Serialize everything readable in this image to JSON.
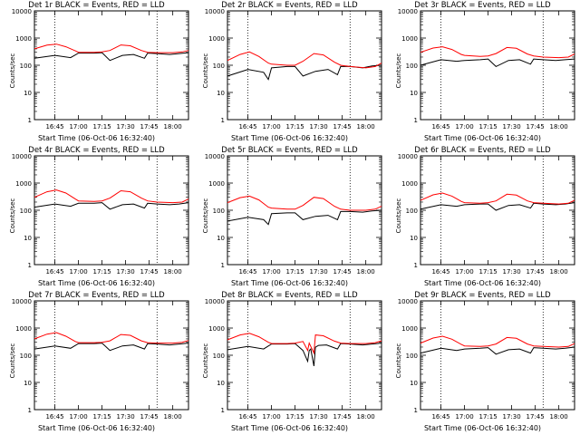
{
  "figure": {
    "xlabel": "Start Time (06-Oct-06 16:32:40)",
    "ylabel": "Counts/sec",
    "x_ticks": [
      "16:45",
      "17:00",
      "17:15",
      "17:30",
      "17:45",
      "18:00"
    ],
    "y_ticks": [
      "1",
      "10",
      "100",
      "1000",
      "10000"
    ],
    "colors": {
      "events": "#000000",
      "lld": "#ff0000",
      "axis": "#000000",
      "background": "#ffffff"
    }
  },
  "chart_data": [
    {
      "type": "line",
      "title": "Det 1r BLACK = Events, RED = LLD",
      "xlabel": "Start Time (06-Oct-06 16:32:40)",
      "ylabel": "Counts/sec",
      "xlim": [
        "16:32",
        "18:10"
      ],
      "ylim": [
        1,
        10000
      ],
      "yscale": "log",
      "vlines": [
        "16:45",
        "17:50"
      ],
      "series": [
        {
          "name": "Events",
          "color": "#000000",
          "x": [
            "16:32",
            "16:45",
            "16:55",
            "17:00",
            "17:10",
            "17:15",
            "17:20",
            "17:28",
            "17:35",
            "17:42",
            "17:44",
            "17:50",
            "17:58",
            "18:04",
            "18:10"
          ],
          "y": [
            180,
            230,
            190,
            280,
            280,
            290,
            150,
            230,
            250,
            180,
            280,
            270,
            250,
            270,
            290
          ]
        },
        {
          "name": "LLD",
          "color": "#ff0000",
          "x": [
            "16:32",
            "16:40",
            "16:46",
            "16:52",
            "16:58",
            "17:00",
            "17:10",
            "17:15",
            "17:20",
            "17:27",
            "17:33",
            "17:40",
            "17:44",
            "17:50",
            "18:00",
            "18:06",
            "18:10"
          ],
          "y": [
            400,
            550,
            600,
            480,
            340,
            300,
            300,
            310,
            350,
            560,
            520,
            350,
            300,
            290,
            290,
            310,
            350
          ]
        }
      ]
    },
    {
      "type": "line",
      "title": "Det 2r BLACK = Events, RED = LLD",
      "xlabel": "Start Time (06-Oct-06 16:32:40)",
      "ylabel": "Counts/sec",
      "xlim": [
        "16:32",
        "18:10"
      ],
      "ylim": [
        1,
        10000
      ],
      "yscale": "log",
      "vlines": [
        "16:45",
        "17:50"
      ],
      "series": [
        {
          "name": "Events",
          "color": "#000000",
          "x": [
            "16:32",
            "16:45",
            "16:55",
            "16:58",
            "17:00",
            "17:10",
            "17:15",
            "17:20",
            "17:28",
            "17:36",
            "17:42",
            "17:44",
            "17:50",
            "17:58",
            "18:04",
            "18:10"
          ],
          "y": [
            40,
            70,
            55,
            30,
            80,
            90,
            90,
            40,
            60,
            70,
            45,
            90,
            90,
            80,
            95,
            100
          ]
        },
        {
          "name": "LLD",
          "color": "#ff0000",
          "x": [
            "16:32",
            "16:40",
            "16:46",
            "16:52",
            "16:58",
            "17:00",
            "17:10",
            "17:15",
            "17:20",
            "17:27",
            "17:33",
            "17:40",
            "17:44",
            "17:50",
            "18:00",
            "18:06",
            "18:10"
          ],
          "y": [
            150,
            250,
            310,
            210,
            120,
            110,
            100,
            100,
            140,
            270,
            240,
            130,
            100,
            90,
            80,
            90,
            120
          ]
        }
      ]
    },
    {
      "type": "line",
      "title": "Det 3r BLACK = Events, RED = LLD",
      "xlabel": "Start Time (06-Oct-06 16:32:40)",
      "ylabel": "Counts/sec",
      "xlim": [
        "16:32",
        "18:10"
      ],
      "ylim": [
        1,
        10000
      ],
      "yscale": "log",
      "vlines": [
        "16:45",
        "17:50"
      ],
      "series": [
        {
          "name": "Events",
          "color": "#000000",
          "x": [
            "16:32",
            "16:45",
            "16:55",
            "17:00",
            "17:10",
            "17:15",
            "17:20",
            "17:28",
            "17:35",
            "17:42",
            "17:44",
            "17:50",
            "17:58",
            "18:04",
            "18:10"
          ],
          "y": [
            100,
            160,
            140,
            150,
            160,
            170,
            90,
            150,
            160,
            110,
            170,
            160,
            150,
            160,
            170
          ]
        },
        {
          "name": "LLD",
          "color": "#ff0000",
          "x": [
            "16:32",
            "16:40",
            "16:46",
            "16:52",
            "16:58",
            "17:00",
            "17:10",
            "17:15",
            "17:20",
            "17:27",
            "17:33",
            "17:40",
            "17:44",
            "17:50",
            "18:00",
            "18:06",
            "18:10"
          ],
          "y": [
            300,
            430,
            480,
            380,
            250,
            230,
            210,
            220,
            270,
            450,
            420,
            260,
            220,
            200,
            190,
            200,
            260
          ]
        }
      ]
    },
    {
      "type": "line",
      "title": "Det 4r BLACK = Events, RED = LLD",
      "xlabel": "Start Time (06-Oct-06 16:32:40)",
      "ylabel": "Counts/sec",
      "xlim": [
        "16:32",
        "18:10"
      ],
      "ylim": [
        1,
        10000
      ],
      "yscale": "log",
      "vlines": [
        "16:45",
        "17:50"
      ],
      "series": [
        {
          "name": "Events",
          "color": "#000000",
          "x": [
            "16:32",
            "16:45",
            "16:55",
            "17:00",
            "17:10",
            "17:15",
            "17:20",
            "17:28",
            "17:35",
            "17:42",
            "17:44",
            "17:50",
            "17:58",
            "18:04",
            "18:10"
          ],
          "y": [
            130,
            170,
            140,
            180,
            180,
            190,
            110,
            160,
            170,
            120,
            180,
            170,
            160,
            170,
            190
          ]
        },
        {
          "name": "LLD",
          "color": "#ff0000",
          "x": [
            "16:32",
            "16:40",
            "16:46",
            "16:52",
            "16:58",
            "17:00",
            "17:10",
            "17:15",
            "17:20",
            "17:27",
            "17:33",
            "17:40",
            "17:44",
            "17:50",
            "18:00",
            "18:06",
            "18:10"
          ],
          "y": [
            300,
            480,
            560,
            430,
            260,
            220,
            210,
            220,
            280,
            520,
            480,
            280,
            220,
            200,
            190,
            200,
            260
          ]
        }
      ]
    },
    {
      "type": "line",
      "title": "Det 5r BLACK = Events, RED = LLD",
      "xlabel": "Start Time (06-Oct-06 16:32:40)",
      "ylabel": "Counts/sec",
      "xlim": [
        "16:32",
        "18:10"
      ],
      "ylim": [
        1,
        10000
      ],
      "yscale": "log",
      "vlines": [
        "16:45",
        "17:50"
      ],
      "series": [
        {
          "name": "Events",
          "color": "#000000",
          "x": [
            "16:32",
            "16:45",
            "16:55",
            "16:58",
            "17:00",
            "17:10",
            "17:15",
            "17:20",
            "17:28",
            "17:36",
            "17:42",
            "17:44",
            "17:50",
            "17:58",
            "18:04",
            "18:10"
          ],
          "y": [
            40,
            55,
            45,
            30,
            75,
            80,
            80,
            45,
            60,
            65,
            45,
            90,
            90,
            85,
            95,
            100
          ]
        },
        {
          "name": "LLD",
          "color": "#ff0000",
          "x": [
            "16:32",
            "16:40",
            "16:46",
            "16:52",
            "16:58",
            "17:00",
            "17:10",
            "17:15",
            "17:20",
            "17:27",
            "17:33",
            "17:40",
            "17:44",
            "17:50",
            "18:00",
            "18:06",
            "18:10"
          ],
          "y": [
            190,
            290,
            330,
            240,
            130,
            120,
            110,
            110,
            150,
            300,
            270,
            140,
            110,
            100,
            100,
            110,
            140
          ]
        }
      ]
    },
    {
      "type": "line",
      "title": "Det 6r BLACK = Events, RED = LLD",
      "xlabel": "Start Time (06-Oct-06 16:32:40)",
      "ylabel": "Counts/sec",
      "xlim": [
        "16:32",
        "18:10"
      ],
      "ylim": [
        1,
        10000
      ],
      "yscale": "log",
      "vlines": [
        "16:45",
        "17:50"
      ],
      "series": [
        {
          "name": "Events",
          "color": "#000000",
          "x": [
            "16:32",
            "16:45",
            "16:55",
            "17:00",
            "17:10",
            "17:15",
            "17:20",
            "17:28",
            "17:35",
            "17:42",
            "17:44",
            "17:50",
            "17:58",
            "18:04",
            "18:10"
          ],
          "y": [
            110,
            160,
            140,
            160,
            170,
            170,
            100,
            150,
            160,
            120,
            180,
            170,
            160,
            170,
            190
          ]
        },
        {
          "name": "LLD",
          "color": "#ff0000",
          "x": [
            "16:32",
            "16:40",
            "16:46",
            "16:52",
            "16:58",
            "17:00",
            "17:10",
            "17:15",
            "17:20",
            "17:27",
            "17:33",
            "17:40",
            "17:44",
            "17:50",
            "18:00",
            "18:06",
            "18:10"
          ],
          "y": [
            230,
            370,
            430,
            330,
            210,
            190,
            180,
            190,
            220,
            390,
            360,
            220,
            190,
            180,
            170,
            180,
            230
          ]
        }
      ]
    },
    {
      "type": "line",
      "title": "Det 7r BLACK = Events, RED = LLD",
      "xlabel": "Start Time (06-Oct-06 16:32:40)",
      "ylabel": "Counts/sec",
      "xlim": [
        "16:32",
        "18:10"
      ],
      "ylim": [
        1,
        10000
      ],
      "yscale": "log",
      "vlines": [
        "16:45",
        "17:50"
      ],
      "series": [
        {
          "name": "Events",
          "color": "#000000",
          "x": [
            "16:32",
            "16:45",
            "16:55",
            "17:00",
            "17:10",
            "17:15",
            "17:20",
            "17:28",
            "17:35",
            "17:42",
            "17:44",
            "17:50",
            "17:58",
            "18:04",
            "18:10"
          ],
          "y": [
            170,
            220,
            180,
            270,
            270,
            280,
            150,
            220,
            240,
            170,
            270,
            260,
            240,
            260,
            280
          ]
        },
        {
          "name": "LLD",
          "color": "#ff0000",
          "x": [
            "16:32",
            "16:40",
            "16:46",
            "16:52",
            "16:58",
            "17:00",
            "17:10",
            "17:15",
            "17:20",
            "17:27",
            "17:33",
            "17:40",
            "17:44",
            "17:50",
            "18:00",
            "18:06",
            "18:10"
          ],
          "y": [
            400,
            600,
            680,
            500,
            320,
            290,
            290,
            300,
            340,
            580,
            540,
            340,
            290,
            280,
            280,
            300,
            350
          ]
        }
      ]
    },
    {
      "type": "line",
      "title": "Det 8r BLACK = Events, RED = LLD",
      "xlabel": "Start Time (06-Oct-06 16:32:40)",
      "ylabel": "Counts/sec",
      "xlim": [
        "16:32",
        "18:10"
      ],
      "ylim": [
        1,
        10000
      ],
      "yscale": "log",
      "vlines": [
        "16:45",
        "17:50"
      ],
      "series": [
        {
          "name": "Events",
          "color": "#000000",
          "x": [
            "16:32",
            "16:45",
            "16:55",
            "17:00",
            "17:10",
            "17:15",
            "17:20",
            "17:23",
            "17:24",
            "17:25",
            "17:27",
            "17:28",
            "17:30",
            "17:35",
            "17:42",
            "17:44",
            "17:50",
            "17:58",
            "18:04",
            "18:10"
          ],
          "y": [
            160,
            210,
            170,
            260,
            260,
            270,
            150,
            60,
            150,
            170,
            40,
            200,
            230,
            240,
            170,
            270,
            260,
            240,
            260,
            280
          ]
        },
        {
          "name": "LLD",
          "color": "#ff0000",
          "x": [
            "16:32",
            "16:40",
            "16:46",
            "16:52",
            "16:58",
            "17:00",
            "17:10",
            "17:15",
            "17:20",
            "17:23",
            "17:24",
            "17:27",
            "17:28",
            "17:33",
            "17:40",
            "17:44",
            "17:50",
            "18:00",
            "18:06",
            "18:10"
          ],
          "y": [
            370,
            560,
            640,
            480,
            300,
            270,
            270,
            280,
            320,
            150,
            280,
            120,
            560,
            520,
            330,
            280,
            270,
            270,
            290,
            340
          ]
        }
      ]
    },
    {
      "type": "line",
      "title": "Det 9r BLACK = Events, RED = LLD",
      "xlabel": "Start Time (06-Oct-06 16:32:40)",
      "ylabel": "Counts/sec",
      "xlim": [
        "16:32",
        "18:10"
      ],
      "ylim": [
        1,
        10000
      ],
      "yscale": "log",
      "vlines": [
        "16:45",
        "17:50"
      ],
      "series": [
        {
          "name": "Events",
          "color": "#000000",
          "x": [
            "16:32",
            "16:45",
            "16:55",
            "17:00",
            "17:10",
            "17:15",
            "17:20",
            "17:28",
            "17:35",
            "17:42",
            "17:44",
            "17:50",
            "17:58",
            "18:04",
            "18:10"
          ],
          "y": [
            120,
            180,
            150,
            170,
            180,
            190,
            110,
            160,
            170,
            120,
            190,
            180,
            170,
            180,
            200
          ]
        },
        {
          "name": "LLD",
          "color": "#ff0000",
          "x": [
            "16:32",
            "16:40",
            "16:46",
            "16:52",
            "16:58",
            "17:00",
            "17:10",
            "17:15",
            "17:20",
            "17:27",
            "17:33",
            "17:40",
            "17:44",
            "17:50",
            "18:00",
            "18:06",
            "18:10"
          ],
          "y": [
            280,
            430,
            500,
            390,
            250,
            220,
            210,
            220,
            260,
            450,
            420,
            260,
            220,
            210,
            200,
            210,
            270
          ]
        }
      ]
    }
  ]
}
